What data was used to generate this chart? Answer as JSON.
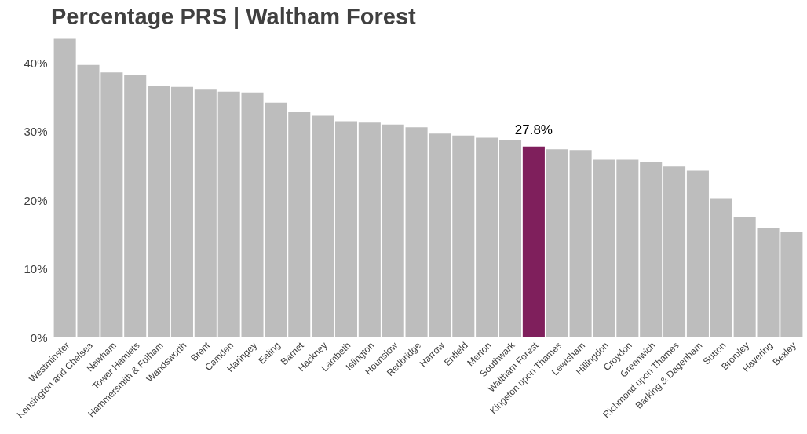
{
  "chart_data": {
    "type": "bar",
    "title": "Percentage PRS | Waltham Forest",
    "categories": [
      "Westminster",
      "Kensington and Chelsea",
      "Newham",
      "Tower Hamlets",
      "Hammersmith & Fulham",
      "Wandsworth",
      "Brent",
      "Camden",
      "Haringey",
      "Ealing",
      "Barnet",
      "Hackney",
      "Lambeth",
      "Islington",
      "Hounslow",
      "Redbridge",
      "Harrow",
      "Enfield",
      "Merton",
      "Southwark",
      "Waltham Forest",
      "Kingston upon Thames",
      "Lewisham",
      "Hillingdon",
      "Croydon",
      "Greenwich",
      "Richmond upon Thames",
      "Barking & Dagenham",
      "Sutton",
      "Bromley",
      "Havering",
      "Bexley"
    ],
    "values": [
      43.5,
      39.7,
      38.6,
      38.3,
      36.6,
      36.5,
      36.1,
      35.8,
      35.7,
      34.2,
      32.8,
      32.3,
      31.5,
      31.3,
      31.0,
      30.6,
      29.7,
      29.4,
      29.1,
      28.8,
      27.8,
      27.4,
      27.3,
      25.9,
      25.9,
      25.6,
      24.9,
      24.3,
      20.3,
      17.5,
      15.9,
      15.4
    ],
    "colors": [
      "#bdbdbd",
      "#bdbdbd",
      "#bdbdbd",
      "#bdbdbd",
      "#bdbdbd",
      "#bdbdbd",
      "#bdbdbd",
      "#bdbdbd",
      "#bdbdbd",
      "#bdbdbd",
      "#bdbdbd",
      "#bdbdbd",
      "#bdbdbd",
      "#bdbdbd",
      "#bdbdbd",
      "#bdbdbd",
      "#bdbdbd",
      "#bdbdbd",
      "#bdbdbd",
      "#bdbdbd",
      "#7f1f5c",
      "#bdbdbd",
      "#bdbdbd",
      "#bdbdbd",
      "#bdbdbd",
      "#bdbdbd",
      "#bdbdbd",
      "#bdbdbd",
      "#bdbdbd",
      "#bdbdbd",
      "#bdbdbd",
      "#bdbdbd"
    ],
    "value_labels": [
      null,
      null,
      null,
      null,
      null,
      null,
      null,
      null,
      null,
      null,
      null,
      null,
      null,
      null,
      null,
      null,
      null,
      null,
      null,
      null,
      "27.8%",
      null,
      null,
      null,
      null,
      null,
      null,
      null,
      null,
      null,
      null,
      null
    ],
    "ylim": [
      0,
      44
    ],
    "yticks": [
      {
        "value": 0,
        "label": "0%"
      },
      {
        "value": 10,
        "label": "10%"
      },
      {
        "value": 20,
        "label": "20%"
      },
      {
        "value": 30,
        "label": "30%"
      },
      {
        "value": 40,
        "label": "40%"
      }
    ],
    "grid": false
  }
}
